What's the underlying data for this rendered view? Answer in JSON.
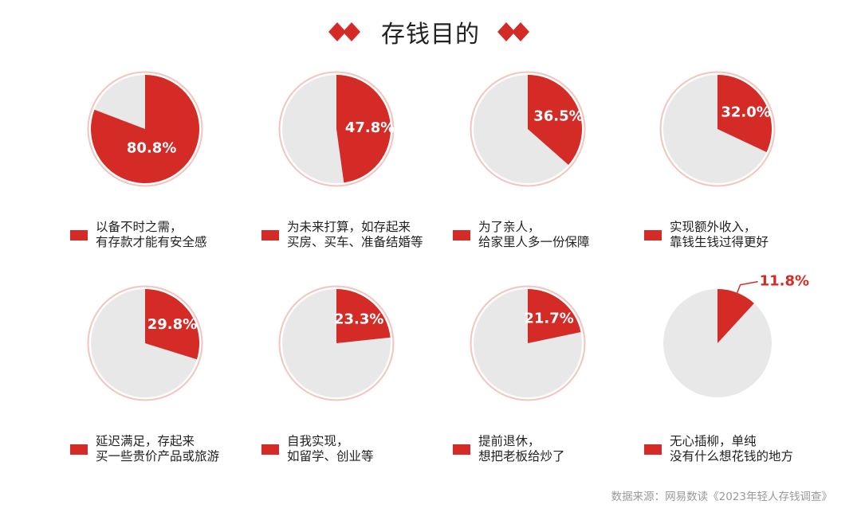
{
  "title": "存钱目的",
  "colors": {
    "accent": "#d42b27",
    "rest": "#e8e8e8",
    "ring": "#f2c4bd"
  },
  "chart_data": {
    "type": "pie",
    "title": "存钱目的",
    "series": [
      {
        "value": 80.8,
        "label": "80.8%",
        "legend": [
          "以备不时之需，",
          "有存款才能有安全感"
        ]
      },
      {
        "value": 47.8,
        "label": "47.8%",
        "legend": [
          "为未来打算，如存起来",
          "买房、买车、准备结婚等"
        ]
      },
      {
        "value": 36.5,
        "label": "36.5%",
        "legend": [
          "为了亲人，",
          "给家里人多一份保障"
        ]
      },
      {
        "value": 32.0,
        "label": "32.0%",
        "legend": [
          "实现额外收入，",
          "靠钱生钱过得更好"
        ]
      },
      {
        "value": 29.8,
        "label": "29.8%",
        "legend": [
          "延迟满足，存起来",
          "买一些贵价产品或旅游"
        ]
      },
      {
        "value": 23.3,
        "label": "23.3%",
        "legend": [
          "自我实现，",
          "如留学、创业等"
        ]
      },
      {
        "value": 21.7,
        "label": "21.7%",
        "legend": [
          "提前退休，",
          "想把老板给炒了"
        ]
      },
      {
        "value": 11.8,
        "label": "11.8%",
        "legend": [
          "无心插柳，单纯",
          "没有什么想花钱的地方"
        ]
      }
    ]
  },
  "source": "数据来源：网易数读《2023年轻人存钱调查》"
}
